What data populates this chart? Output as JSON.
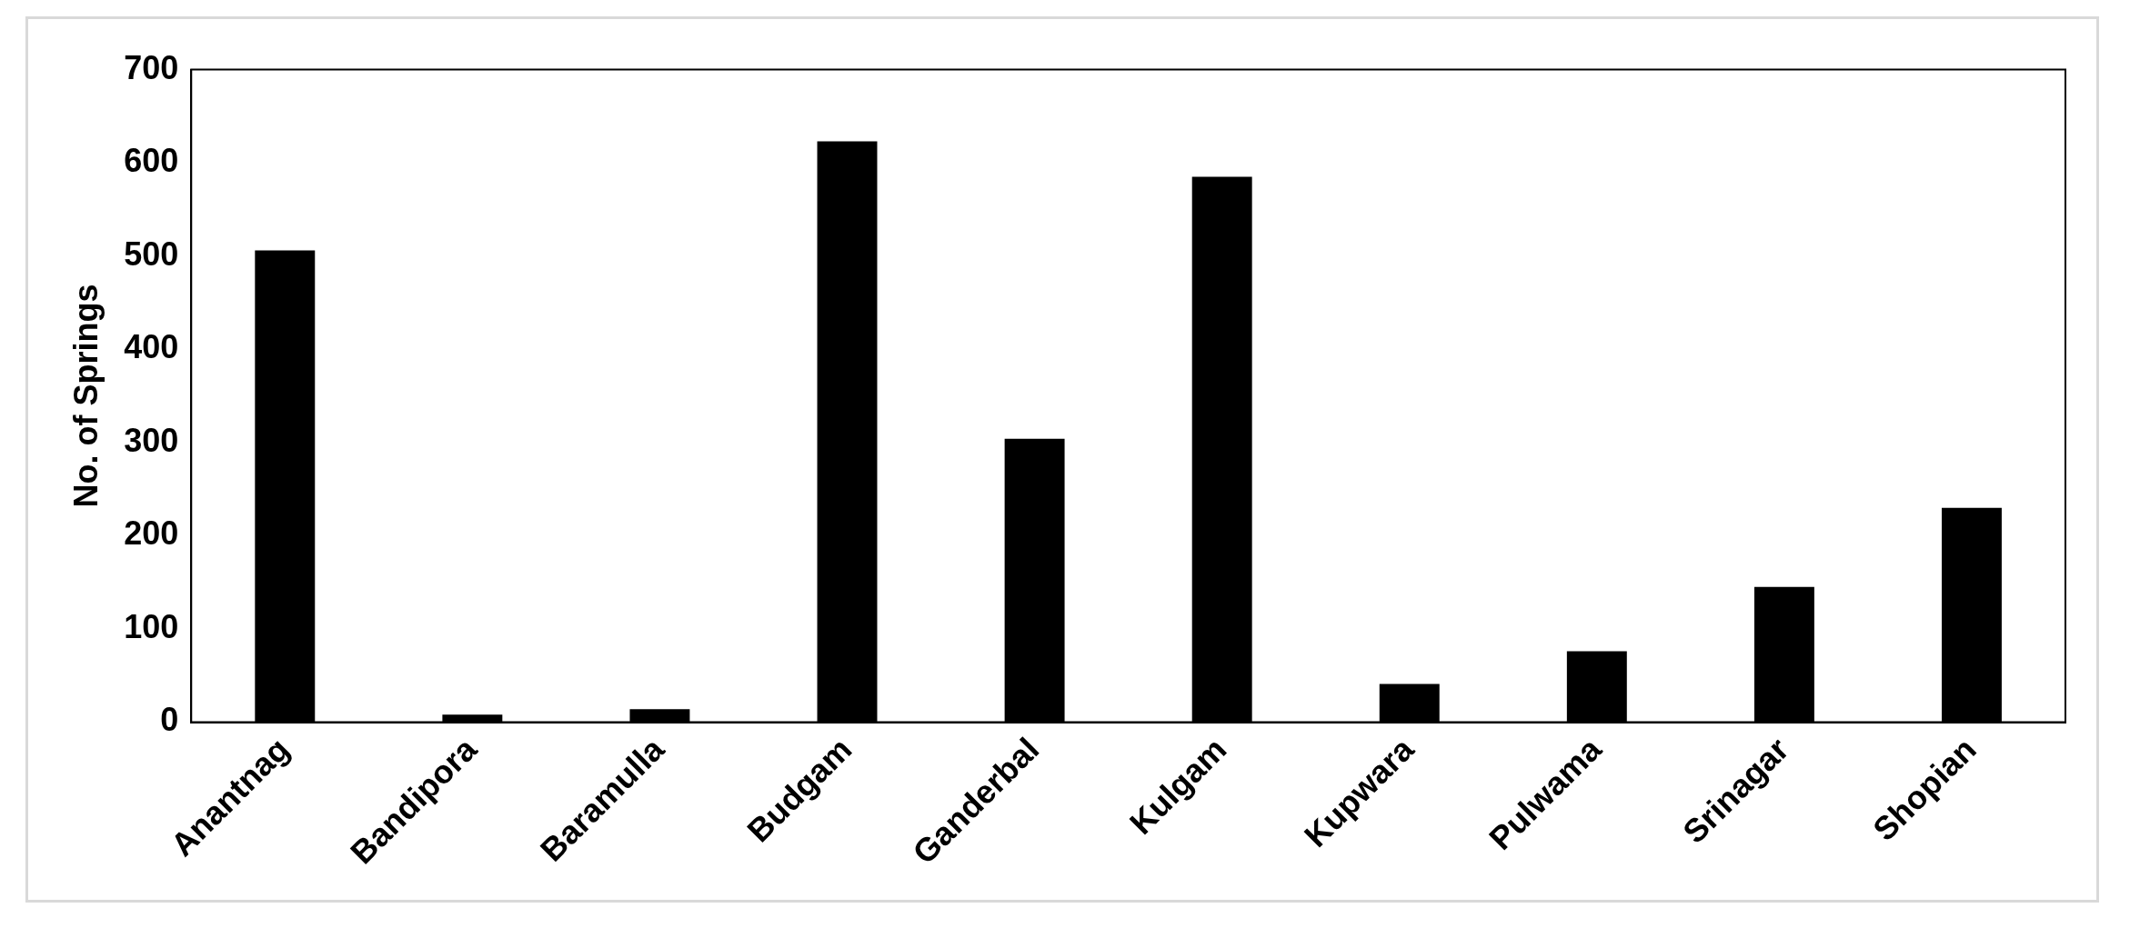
{
  "chart_data": {
    "type": "bar",
    "ylabel": "No. of Springs",
    "categories": [
      "Anantnag",
      "Bandipora",
      "Baramulla",
      "Budgam",
      "Ganderbal",
      "Kulgam",
      "Kupwara",
      "Pulwama",
      "Srinagar",
      "Shopian"
    ],
    "values": [
      506,
      8,
      14,
      623,
      304,
      585,
      41,
      76,
      145,
      230
    ],
    "color": "#000000",
    "ylim": [
      0,
      700
    ],
    "yticks": [
      0,
      100,
      200,
      300,
      400,
      500,
      600,
      700
    ],
    "grid": false,
    "legend": false
  }
}
